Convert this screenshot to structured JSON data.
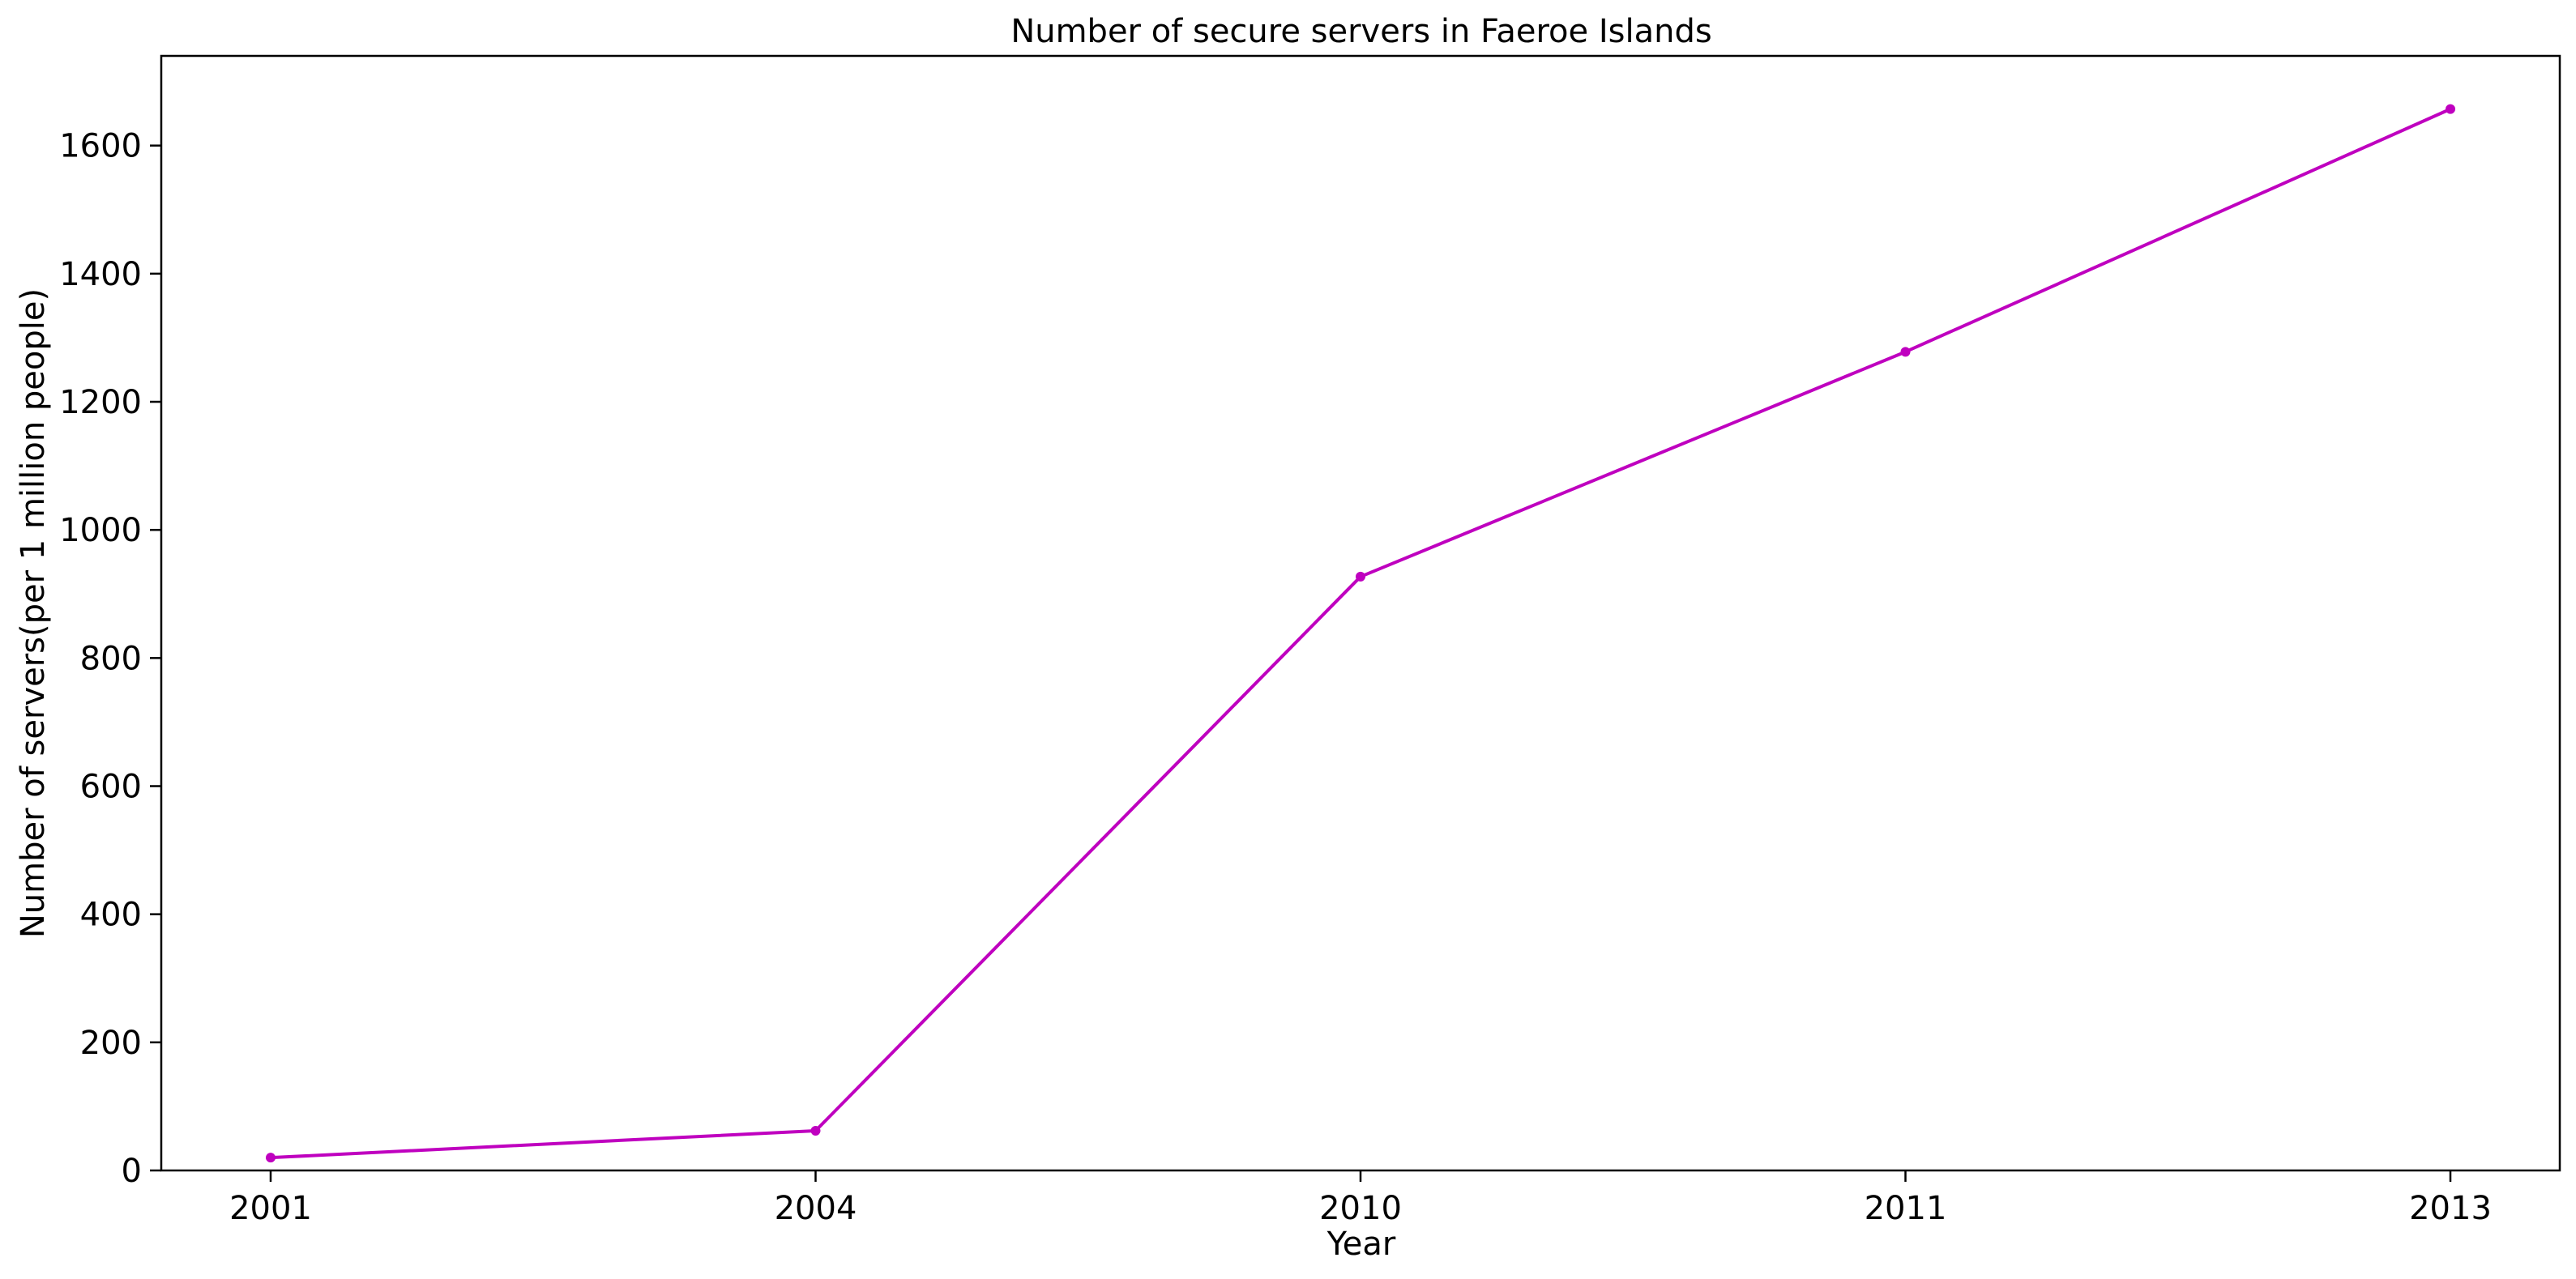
{
  "chart_data": {
    "type": "line",
    "title": "Number of secure servers in Faeroe Islands",
    "xlabel": "Year",
    "ylabel": "Number of servers(per 1 million people)",
    "categories": [
      "2001",
      "2004",
      "2010",
      "2011",
      "2013"
    ],
    "series": [
      {
        "values": [
          20,
          62,
          927,
          1278,
          1657
        ],
        "color": "#bf00bf"
      }
    ],
    "ylim": [
      0,
      1740
    ],
    "yticks": [
      0,
      200,
      400,
      600,
      800,
      1000,
      1200,
      1400,
      1600
    ],
    "grid": false,
    "legend": "none"
  }
}
